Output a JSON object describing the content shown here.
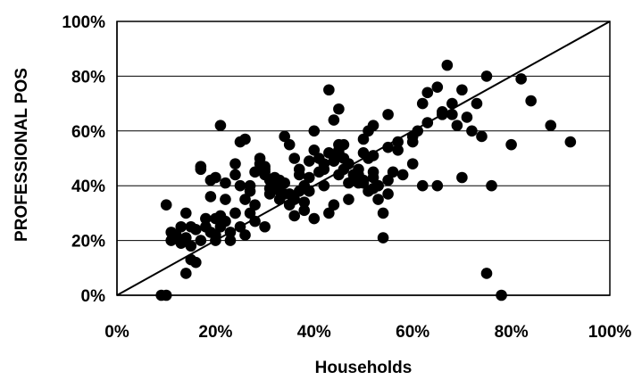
{
  "chart_data": {
    "type": "scatter",
    "xlabel": "Households",
    "ylabel": "PROFESSIONAL POS",
    "xlim": [
      0,
      100
    ],
    "ylim": [
      0,
      100
    ],
    "x_ticks": [
      "0%",
      "20%",
      "40%",
      "60%",
      "80%",
      "100%"
    ],
    "y_ticks": [
      "0%",
      "20%",
      "40%",
      "60%",
      "80%",
      "100%"
    ],
    "grid": "horizontal",
    "reference_line": {
      "from": [
        0,
        0
      ],
      "to": [
        100,
        100
      ]
    },
    "colors": {
      "marker": "#000000",
      "grid": "#000000",
      "line": "#000000"
    },
    "series": [
      {
        "x": [
          9,
          10,
          11,
          10,
          12,
          13,
          14,
          15,
          14,
          16,
          17,
          15,
          18,
          19,
          20,
          21,
          20,
          22,
          23,
          21,
          24,
          25,
          26,
          24,
          27,
          28,
          30,
          29,
          31,
          32,
          30,
          33,
          34,
          35,
          34,
          36,
          37,
          38,
          37,
          39,
          40,
          41,
          42,
          40,
          43,
          44,
          45,
          43,
          46,
          47,
          48,
          46,
          49,
          50,
          51,
          49,
          52,
          53,
          54,
          52,
          55,
          56,
          57,
          55,
          58,
          60,
          62,
          63,
          65,
          66,
          68,
          67,
          70,
          72,
          74,
          75,
          76,
          78,
          80,
          82,
          84,
          88,
          92,
          75,
          68,
          60,
          44,
          45,
          46,
          47,
          48,
          50,
          51,
          52,
          53,
          54,
          49,
          50,
          51,
          52,
          53,
          41,
          42,
          43,
          44,
          45,
          39,
          38,
          36,
          35,
          34,
          33,
          32,
          31,
          30,
          29,
          28,
          27,
          26,
          25,
          24,
          23,
          22,
          21,
          20,
          19,
          18,
          17,
          16,
          15,
          14,
          13,
          12,
          11,
          20,
          25,
          30,
          35,
          40,
          45,
          50,
          55,
          60,
          65,
          70,
          24,
          26,
          28,
          31,
          33,
          37,
          39,
          42,
          45,
          47,
          52,
          57,
          61,
          63,
          66,
          69,
          71,
          73,
          36,
          38,
          44,
          47,
          55,
          62,
          30,
          27,
          22,
          19,
          17
        ],
        "y": [
          0,
          0,
          23,
          33,
          22,
          19,
          21,
          25,
          30,
          24,
          46,
          13,
          28,
          36,
          43,
          29,
          20,
          35,
          23,
          62,
          44,
          56,
          57,
          48,
          40,
          45,
          47,
          50,
          42,
          40,
          25,
          35,
          37,
          33,
          58,
          50,
          38,
          34,
          44,
          49,
          53,
          45,
          40,
          28,
          75,
          64,
          68,
          30,
          46,
          41,
          44,
          55,
          41,
          52,
          50,
          46,
          39,
          35,
          30,
          62,
          42,
          45,
          53,
          54,
          44,
          48,
          70,
          74,
          76,
          66,
          66,
          84,
          75,
          60,
          58,
          80,
          40,
          0,
          55,
          79,
          71,
          62,
          56,
          8,
          70,
          56,
          49,
          44,
          50,
          48,
          44,
          42,
          60,
          45,
          40,
          21,
          44,
          41,
          38,
          43,
          40,
          50,
          46,
          52,
          49,
          55,
          38,
          40,
          35,
          37,
          41,
          38,
          43,
          39,
          46,
          48,
          27,
          30,
          22,
          25,
          30,
          20,
          27,
          25,
          22,
          23,
          25,
          20,
          12,
          18,
          8,
          25,
          21,
          20,
          28,
          40,
          45,
          55,
          60,
          53,
          57,
          66,
          58,
          40,
          43,
          30,
          35,
          33,
          37,
          42,
          46,
          43,
          48,
          52,
          48,
          51,
          56,
          60,
          63,
          67,
          62,
          65,
          70,
          29,
          31,
          33,
          35,
          37,
          40,
          44,
          38,
          41,
          42,
          47
        ]
      }
    ]
  }
}
